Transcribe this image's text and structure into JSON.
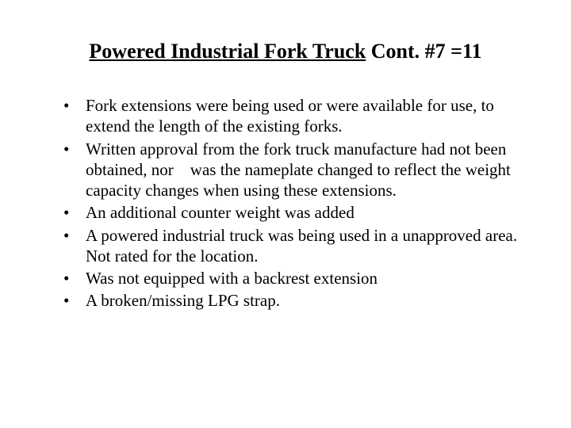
{
  "title": {
    "underlined": "Powered Industrial Fork Truck",
    "rest": " Cont. #7 =11"
  },
  "bullets": [
    "Fork extensions were being used or were available for use, to extend the length of the existing forks.",
    "Written approval from the fork truck manufacture had not been obtained, nor    was the nameplate changed to reflect the weight capacity changes when using these extensions.",
    "An additional counter weight was added",
    "A powered industrial truck was being used in a unapproved area.  Not rated for the location.",
    "Was not equipped with a backrest extension",
    "A broken/missing LPG strap."
  ]
}
